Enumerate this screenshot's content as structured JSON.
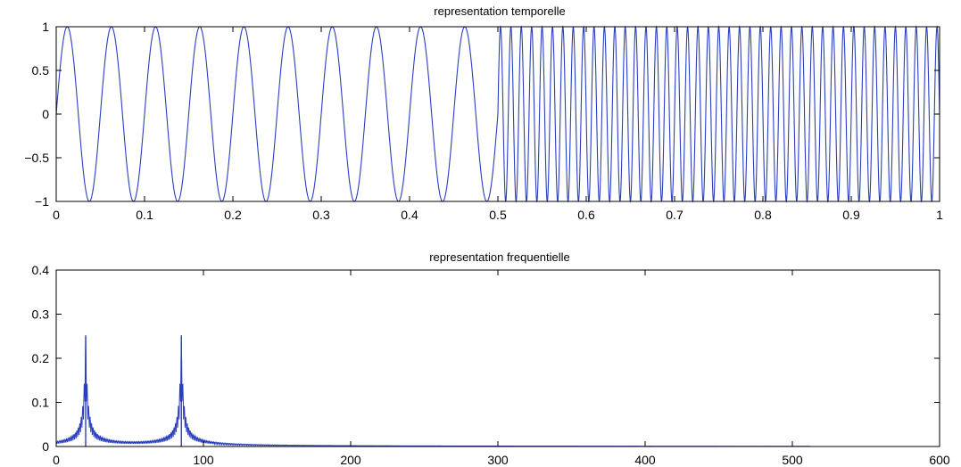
{
  "chart_data": [
    {
      "type": "line",
      "title": "representation temporelle",
      "xlabel": "",
      "ylabel": "",
      "xlim": [
        0,
        1
      ],
      "ylim": [
        -1,
        1
      ],
      "xticks": [
        "0",
        "0.1",
        "0.2",
        "0.3",
        "0.4",
        "0.5",
        "0.6",
        "0.7",
        "0.8",
        "0.9",
        "1"
      ],
      "yticks": [
        "-1",
        "-0.5",
        "0",
        "0.5",
        "1"
      ],
      "grid": false,
      "series": [
        {
          "segments": [
            {
              "x_start": 0,
              "x_end": 0.5,
              "frequency": 20,
              "amplitude": 1
            },
            {
              "x_start": 0.5,
              "x_end": 1,
              "frequency": 85,
              "amplitude": 1
            }
          ],
          "color": "#2a3fbf"
        }
      ]
    },
    {
      "type": "line",
      "title": "representation frequentielle",
      "xlabel": "",
      "ylabel": "",
      "xlim": [
        0,
        600
      ],
      "ylim": [
        0,
        0.4
      ],
      "xticks": [
        "0",
        "100",
        "200",
        "300",
        "400",
        "500",
        "600"
      ],
      "yticks": [
        "0",
        "0.1",
        "0.2",
        "0.3",
        "0.4"
      ],
      "grid": false,
      "x_end": 512,
      "series": [
        {
          "peaks": [
            {
              "x": 20,
              "y": 0.25
            },
            {
              "x": 85,
              "y": 0.25
            }
          ],
          "color": "#2a3fbf"
        }
      ]
    }
  ]
}
